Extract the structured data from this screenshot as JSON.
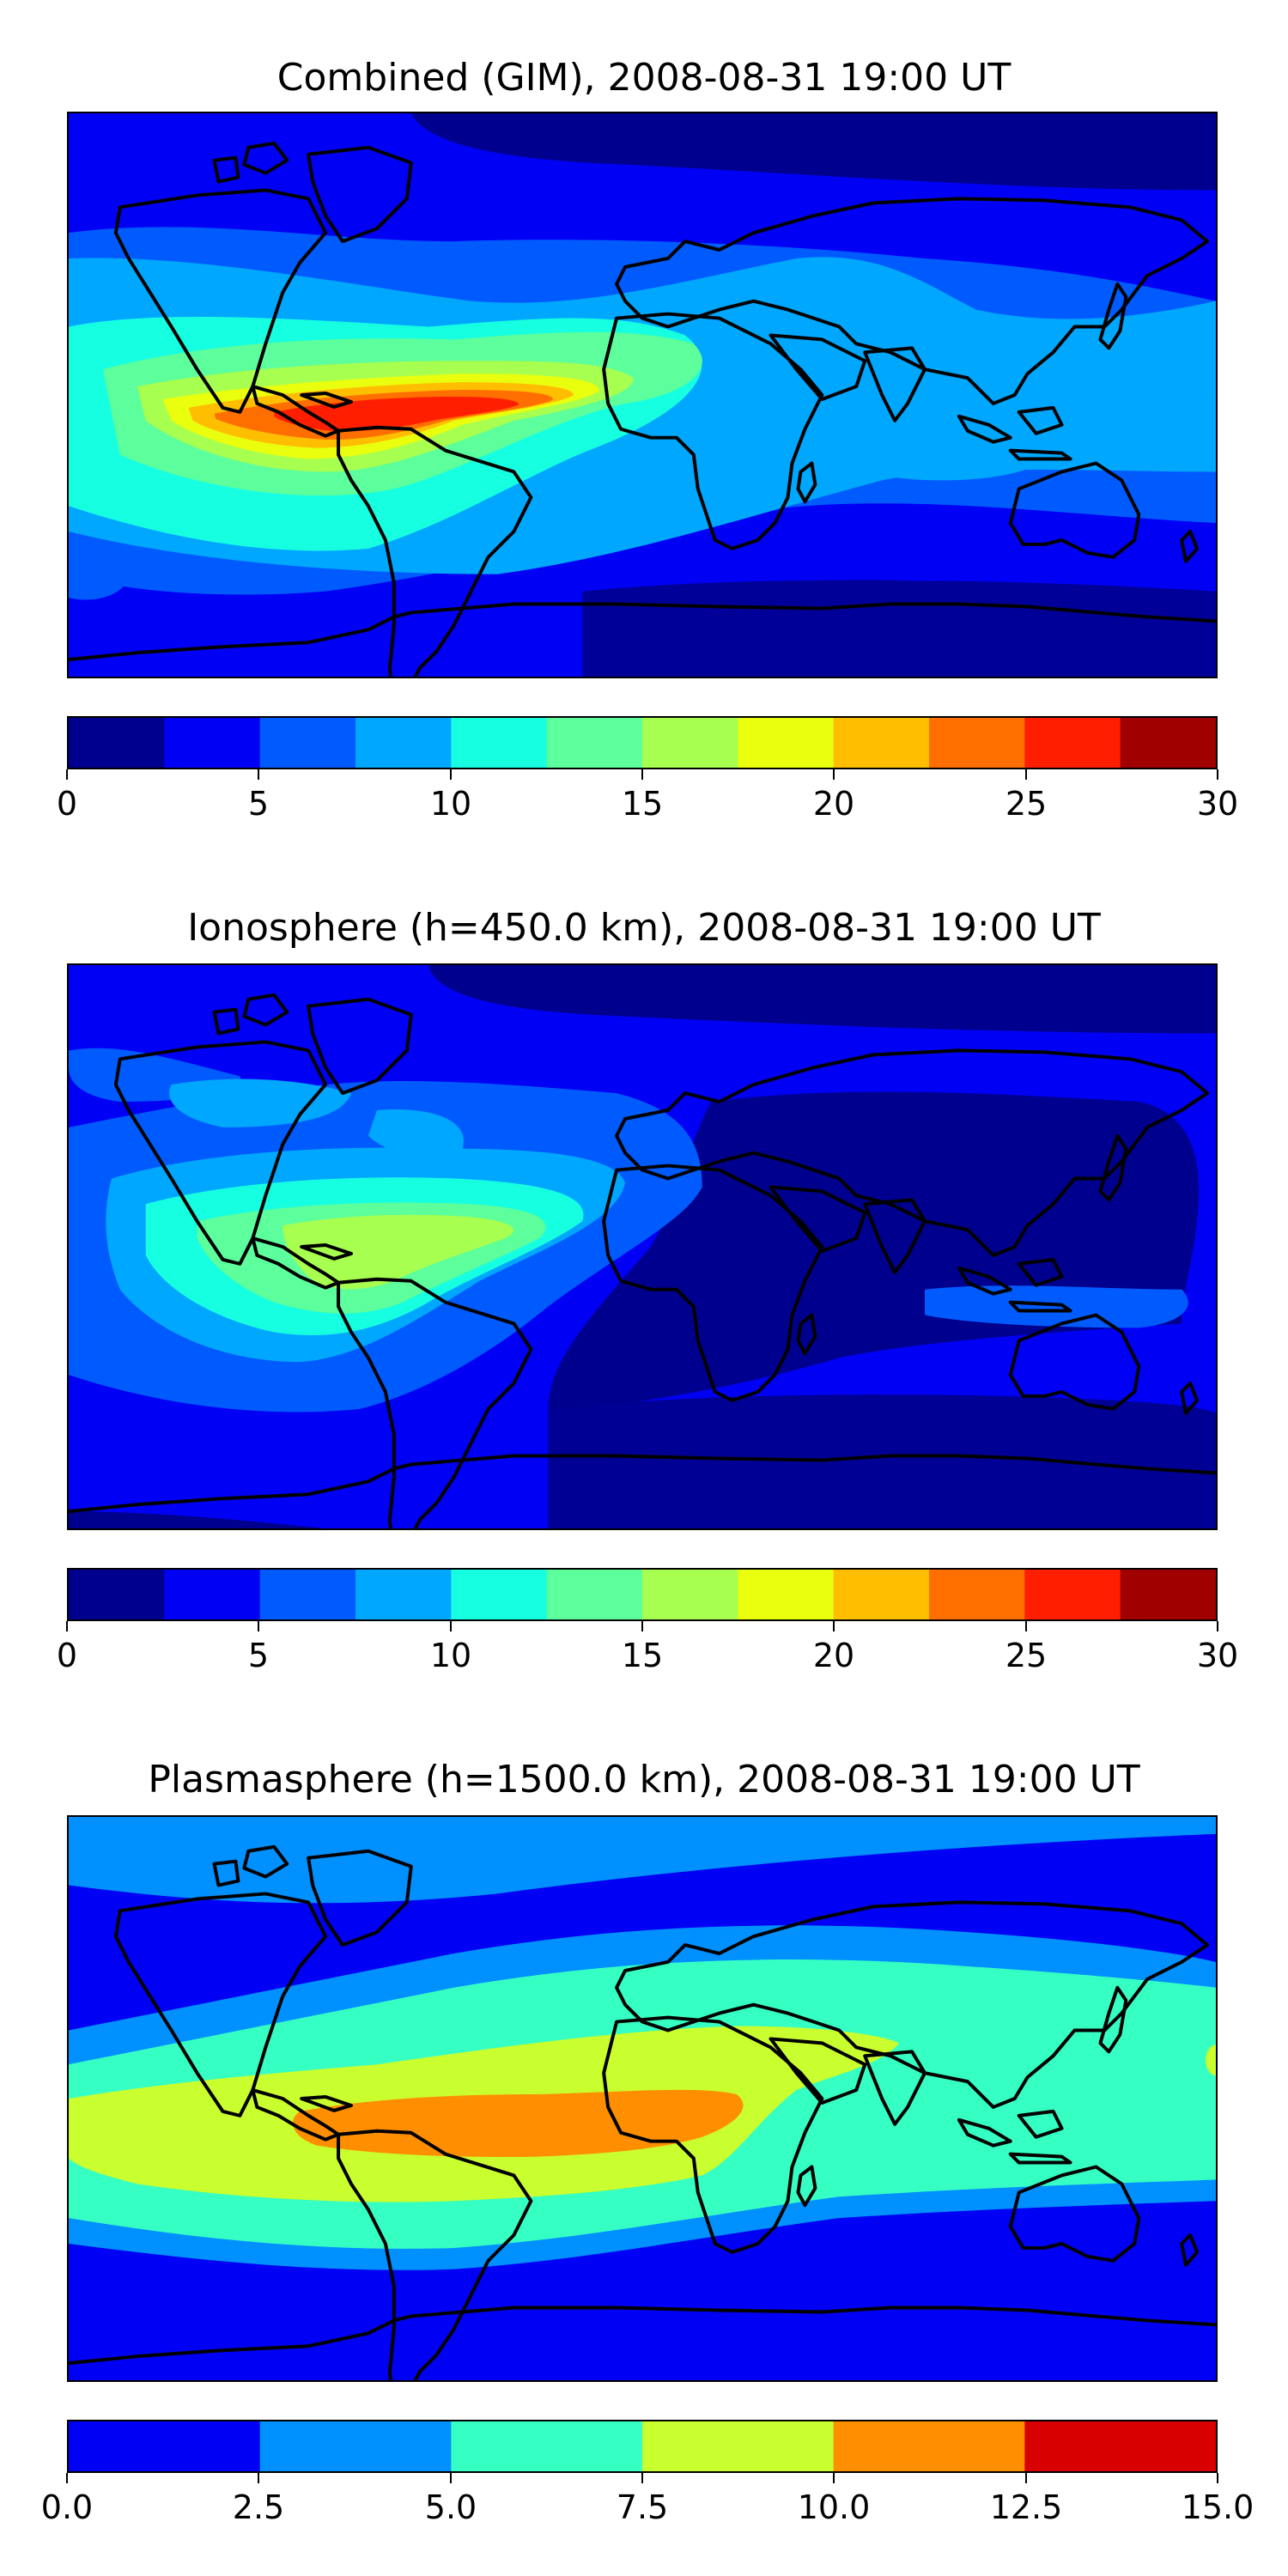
{
  "panels": [
    {
      "title": "Combined (GIM), 2008-08-31 19:00 UT",
      "tick_labels": [
        "0",
        "5",
        "10",
        "15",
        "20",
        "25",
        "30"
      ],
      "colorbar": [
        "#00008f",
        "#0000f5",
        "#005bff",
        "#00a7ff",
        "#16ffe1",
        "#5cff9b",
        "#a7ff50",
        "#e9ff0d",
        "#ffbe00",
        "#ff6f00",
        "#ff1f00",
        "#a00000"
      ]
    },
    {
      "title": "Ionosphere  (h=450.0 km), 2008-08-31 19:00 UT",
      "tick_labels": [
        "0",
        "5",
        "10",
        "15",
        "20",
        "25",
        "30"
      ],
      "colorbar": [
        "#00008f",
        "#0000f5",
        "#005bff",
        "#00a7ff",
        "#16ffe1",
        "#5cff9b",
        "#a7ff50",
        "#e9ff0d",
        "#ffbe00",
        "#ff6f00",
        "#ff1f00",
        "#a00000"
      ]
    },
    {
      "title": "Plasmasphere (h=1500.0 km), 2008-08-31 19:00 UT",
      "tick_labels": [
        "0.0",
        "2.5",
        "5.0",
        "7.5",
        "10.0",
        "12.5",
        "15.0"
      ],
      "colorbar": [
        "#0000f5",
        "#0090ff",
        "#35ffc2",
        "#c9ff2e",
        "#ff8f00",
        "#d80000"
      ]
    }
  ]
}
